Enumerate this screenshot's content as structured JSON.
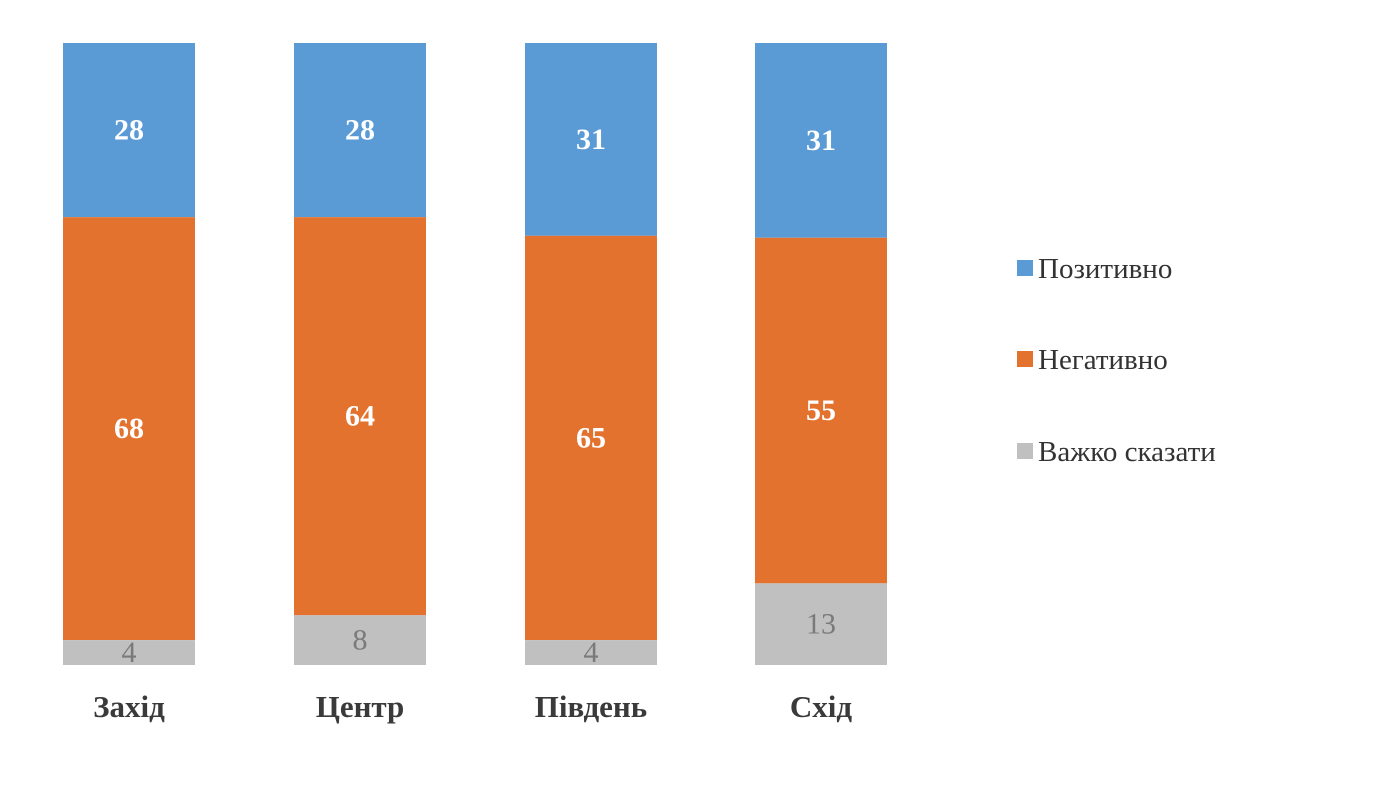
{
  "chart_data": {
    "type": "bar",
    "stacked": true,
    "orientation": "vertical",
    "normalized_to": 100,
    "categories": [
      "Захід",
      "Центр",
      "Південь",
      "Схід"
    ],
    "series": [
      {
        "name": "Позитивно",
        "color": "#5b9bd5",
        "label_color": "#ffffff",
        "values": [
          28,
          28,
          31,
          31
        ]
      },
      {
        "name": "Негативно",
        "color": "#e2722d",
        "label_color": "#ffffff",
        "values": [
          68,
          64,
          65,
          55
        ]
      },
      {
        "name": "Важко сказати",
        "color": "#c0c0c0",
        "label_color": "#7a7a7a",
        "values": [
          4,
          8,
          4,
          13
        ]
      }
    ],
    "stack_order": "first series on top",
    "legend_position": "right",
    "grid": false,
    "axes_visible": false
  }
}
